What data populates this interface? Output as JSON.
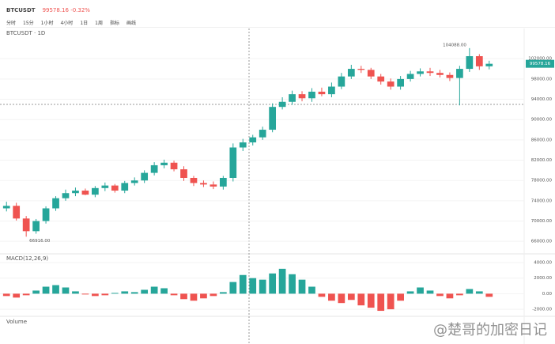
{
  "header": {
    "symbol": "BTCUSDT",
    "price": "99578.16 -0.32%"
  },
  "toolbar": [
    "分时",
    "15分",
    "1小时",
    "4小时",
    "1日",
    "1周",
    "指标",
    "画线"
  ],
  "watermark": "@楚哥的加密日记",
  "chart_data": [
    {
      "type": "candlestick",
      "title": "BTCUSDT · 1D",
      "open": [
        72500,
        73000,
        70500,
        68000,
        70000,
        72500,
        74500,
        75500,
        76000,
        75200,
        76500,
        77000,
        76000,
        77500,
        78000,
        79500,
        81000,
        81500,
        80200,
        78500,
        77500,
        77200,
        76800,
        78500,
        84500,
        85500,
        86500,
        88000,
        92500,
        93500,
        95000,
        94200,
        95500,
        95000,
        96500,
        98500,
        100000,
        99800,
        98500,
        97500,
        96500,
        98000,
        99000,
        99500,
        99200,
        98800,
        98200,
        100000,
        102500,
        100500
      ],
      "high": [
        73800,
        73600,
        71000,
        70400,
        72900,
        74900,
        76200,
        76600,
        76400,
        76900,
        77600,
        77300,
        77900,
        78600,
        80000,
        81600,
        82100,
        81900,
        80800,
        78900,
        78000,
        77800,
        78900,
        85300,
        86200,
        87000,
        88600,
        93200,
        94400,
        95700,
        95600,
        96200,
        96300,
        97300,
        99200,
        100800,
        100600,
        100200,
        99000,
        98100,
        98600,
        99600,
        100100,
        100200,
        99800,
        99300,
        100600,
        104088,
        102900,
        101600
      ],
      "low": [
        71900,
        70100,
        66916,
        67500,
        69500,
        72000,
        74000,
        74900,
        75100,
        74700,
        75900,
        75600,
        75500,
        77000,
        77500,
        79000,
        80400,
        79800,
        77900,
        76900,
        76700,
        76300,
        76200,
        77800,
        83800,
        84900,
        86000,
        87500,
        92000,
        92900,
        93600,
        93500,
        94600,
        94400,
        96000,
        98000,
        99200,
        98000,
        96900,
        95900,
        95900,
        97500,
        98500,
        98600,
        98300,
        97600,
        92800,
        99400,
        99800,
        99900
      ],
      "close": [
        73000,
        70500,
        68000,
        70000,
        72500,
        74500,
        75500,
        76000,
        75200,
        76500,
        77000,
        76000,
        77500,
        78000,
        79500,
        81000,
        81500,
        80200,
        78500,
        77500,
        77200,
        76800,
        78500,
        84500,
        85500,
        86500,
        88000,
        92500,
        93500,
        95000,
        94200,
        95500,
        95000,
        96500,
        98500,
        100000,
        99800,
        98500,
        97500,
        96500,
        98000,
        99000,
        99500,
        99200,
        98800,
        98200,
        100000,
        102500,
        100500,
        101000
      ],
      "up_color": "#26a69a",
      "down_color": "#ef5350",
      "high_label": "104088.00",
      "low_label": "66916.00",
      "last_price": "99578.16",
      "ylim": [
        64000,
        105000
      ],
      "yticks": [
        {
          "value": 102000,
          "label": "102000.00"
        },
        {
          "value": 98000,
          "label": "98000.00"
        },
        {
          "value": 94000,
          "label": "94000.00"
        },
        {
          "value": 90000,
          "label": "90000.00"
        },
        {
          "value": 86000,
          "label": "86000.00"
        },
        {
          "value": 82000,
          "label": "82000.00"
        },
        {
          "value": 78000,
          "label": "78000.00"
        },
        {
          "value": 74000,
          "label": "74000.00"
        },
        {
          "value": 70000,
          "label": "70000.00"
        },
        {
          "value": 66000,
          "label": "66000.00"
        }
      ]
    },
    {
      "type": "bar",
      "title": "MACD(12,26,9)",
      "values": [
        -300,
        -500,
        -200,
        400,
        900,
        1100,
        800,
        300,
        -100,
        -300,
        -200,
        100,
        300,
        200,
        500,
        900,
        700,
        -200,
        -700,
        -900,
        -600,
        -300,
        200,
        1500,
        2400,
        2000,
        1800,
        2600,
        3200,
        2500,
        1800,
        900,
        -400,
        -900,
        -1200,
        -800,
        -1500,
        -1800,
        -2200,
        -2000,
        -900,
        300,
        800,
        400,
        -300,
        -600,
        -200,
        600,
        300,
        -400
      ],
      "up_color": "#26a69a",
      "down_color": "#ef5350",
      "ylim": [
        -2500,
        4000
      ],
      "yticks": [
        {
          "value": 4000,
          "label": "4000.00"
        },
        {
          "value": 2000,
          "label": "2000.00"
        },
        {
          "value": 0,
          "label": "0.00"
        },
        {
          "value": -2000,
          "label": "-2000.00"
        }
      ]
    }
  ],
  "volume_title": "Volume"
}
